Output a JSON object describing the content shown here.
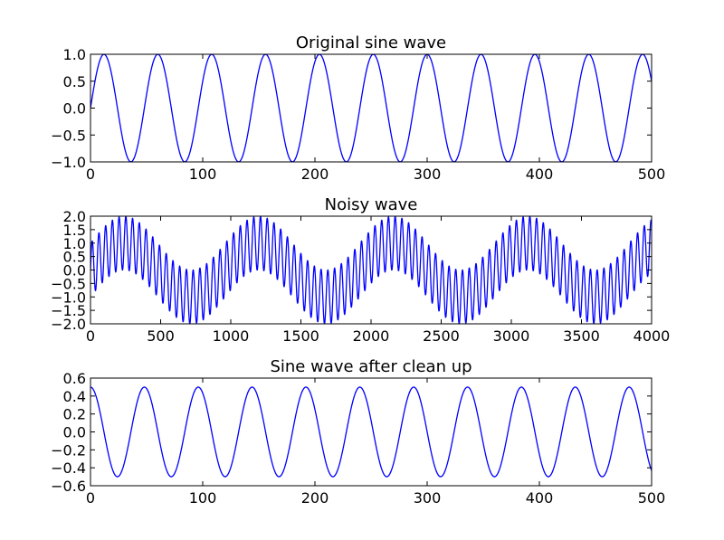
{
  "chart_data": [
    {
      "type": "line",
      "title": "Original sine wave",
      "xlabel": "",
      "ylabel": "",
      "xlim": [
        0,
        500
      ],
      "ylim": [
        -1.0,
        1.0
      ],
      "xticks": [
        "0",
        "100",
        "200",
        "300",
        "400",
        "500"
      ],
      "yticks": [
        "1.0",
        "0.5",
        "0.0",
        "−0.5",
        "−1.0"
      ],
      "series": [
        {
          "color": "#0000ff",
          "function": "y = sin(2*pi*x/48)",
          "x_range": [
            0,
            500
          ],
          "num_points": 501
        }
      ]
    },
    {
      "type": "line",
      "title": "Noisy wave",
      "xlabel": "",
      "ylabel": "",
      "xlim": [
        0,
        4000
      ],
      "ylim": [
        -2.0,
        2.0
      ],
      "xticks": [
        "0",
        "500",
        "1000",
        "1500",
        "2000",
        "2500",
        "3000",
        "3500",
        "4000"
      ],
      "yticks": [
        "2.0",
        "1.5",
        "1.0",
        "0.5",
        "0.0",
        "−0.5",
        "−1.0",
        "−1.5",
        "−2.0"
      ],
      "series": [
        {
          "color": "#0000ff",
          "function": "y = sin(2*pi*x/48) + sin(2*pi*x/960)",
          "x_range": [
            0,
            4000
          ],
          "num_points": 4001
        }
      ]
    },
    {
      "type": "line",
      "title": "Sine wave after clean up",
      "xlabel": "",
      "ylabel": "",
      "xlim": [
        0,
        500
      ],
      "ylim": [
        -0.6,
        0.6
      ],
      "xticks": [
        "0",
        "100",
        "200",
        "300",
        "400",
        "500"
      ],
      "yticks": [
        "0.6",
        "0.4",
        "0.2",
        "0.0",
        "−0.2",
        "−0.4",
        "−0.6"
      ],
      "series": [
        {
          "color": "#0000ff",
          "function": "y = 0.5*cos(2*pi*x/48)",
          "x_range": [
            0,
            500
          ],
          "num_points": 501
        }
      ]
    }
  ]
}
